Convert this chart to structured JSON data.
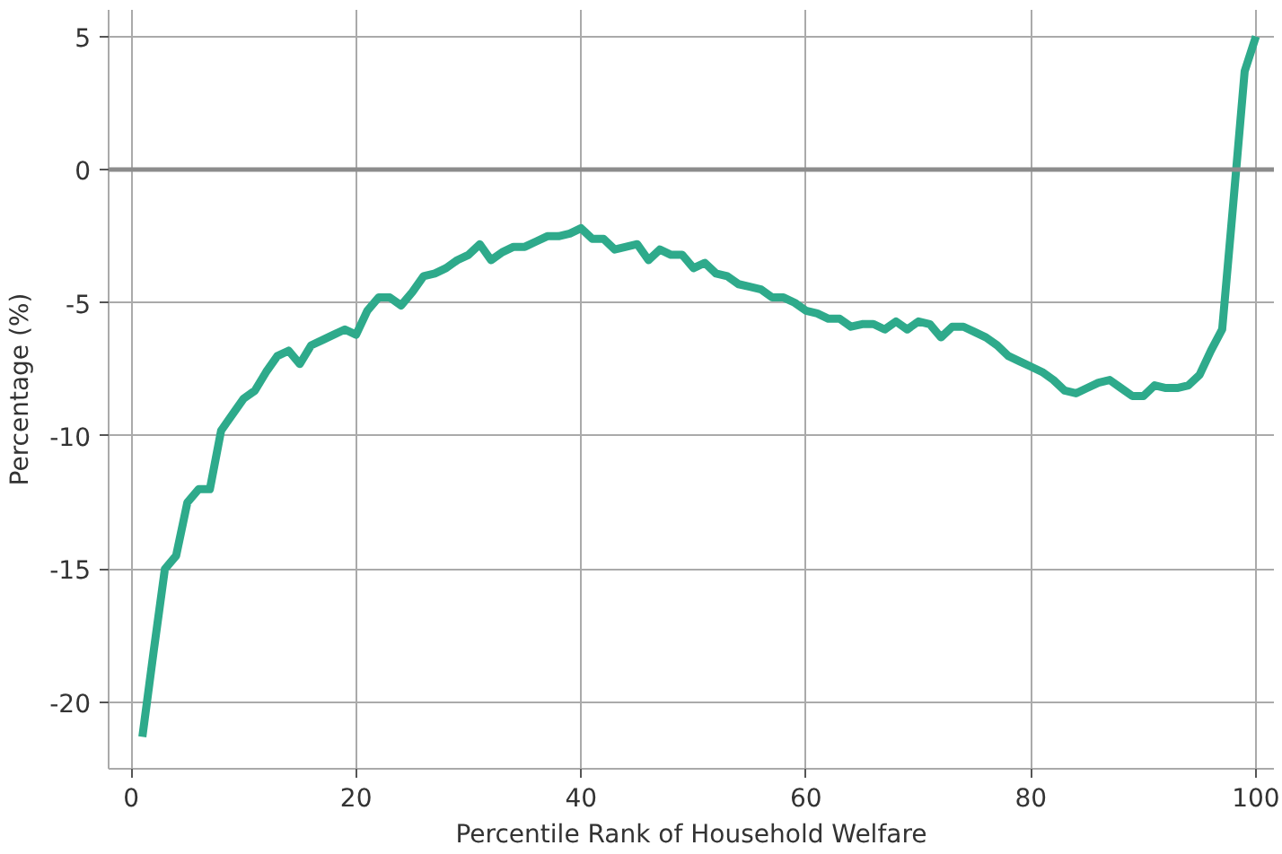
{
  "chart_data": {
    "type": "line",
    "xlabel": "Percentile Rank of Household Welfare",
    "ylabel": "Percentage (%)",
    "x": [
      1,
      2,
      3,
      4,
      5,
      6,
      7,
      8,
      9,
      10,
      11,
      12,
      13,
      14,
      15,
      16,
      17,
      18,
      19,
      20,
      21,
      22,
      23,
      24,
      25,
      26,
      27,
      28,
      29,
      30,
      31,
      32,
      33,
      34,
      35,
      36,
      37,
      38,
      39,
      40,
      41,
      42,
      43,
      44,
      45,
      46,
      47,
      48,
      49,
      50,
      51,
      52,
      53,
      54,
      55,
      56,
      57,
      58,
      59,
      60,
      61,
      62,
      63,
      64,
      65,
      66,
      67,
      68,
      69,
      70,
      71,
      72,
      73,
      74,
      75,
      76,
      77,
      78,
      79,
      80,
      81,
      82,
      83,
      84,
      85,
      86,
      87,
      88,
      89,
      90,
      91,
      92,
      93,
      94,
      95,
      96,
      97,
      98,
      99,
      100
    ],
    "series": [
      {
        "color": "#2eaa8b",
        "values": [
          -21.3,
          -18.1,
          -15.0,
          -14.5,
          -12.5,
          -12.0,
          -12.0,
          -9.8,
          -9.2,
          -8.6,
          -8.3,
          -7.6,
          -7.0,
          -6.8,
          -7.3,
          -6.6,
          -6.4,
          -6.2,
          -6.0,
          -6.2,
          -5.3,
          -4.8,
          -4.8,
          -5.1,
          -4.6,
          -4.0,
          -3.9,
          -3.7,
          -3.4,
          -3.2,
          -2.8,
          -3.4,
          -3.1,
          -2.9,
          -2.9,
          -2.7,
          -2.5,
          -2.5,
          -2.4,
          -2.2,
          -2.6,
          -2.6,
          -3.0,
          -2.9,
          -2.8,
          -3.4,
          -3.0,
          -3.2,
          -3.2,
          -3.7,
          -3.5,
          -3.9,
          -4.0,
          -4.3,
          -4.4,
          -4.5,
          -4.8,
          -4.8,
          -5.0,
          -5.3,
          -5.4,
          -5.6,
          -5.6,
          -5.9,
          -5.8,
          -5.8,
          -6.0,
          -5.7,
          -6.0,
          -5.7,
          -5.8,
          -6.3,
          -5.9,
          -5.9,
          -6.1,
          -6.3,
          -6.6,
          -7.0,
          -7.2,
          -7.4,
          -7.6,
          -7.9,
          -8.3,
          -8.4,
          -8.2,
          -8.0,
          -7.9,
          -8.2,
          -8.5,
          -8.5,
          -8.1,
          -8.2,
          -8.2,
          -8.1,
          -7.7,
          -6.8,
          -6.0,
          -1.2,
          3.7,
          5.0
        ]
      }
    ],
    "xlim": [
      -2,
      101.6
    ],
    "ylim": [
      -22.5,
      6
    ],
    "xticks": [
      0,
      20,
      40,
      60,
      80,
      100
    ],
    "yticks": [
      {
        "value": -20,
        "label": "-20"
      },
      {
        "value": -15,
        "label": "-15"
      },
      {
        "value": -10,
        "label": "-10"
      },
      {
        "value": -5,
        "label": "-5"
      },
      0,
      5
    ],
    "grid": true,
    "marker": "none",
    "line_style": "solid",
    "ref_lines": [
      {
        "axis": "y",
        "value": 0,
        "color": "#8c8c8c"
      }
    ]
  }
}
